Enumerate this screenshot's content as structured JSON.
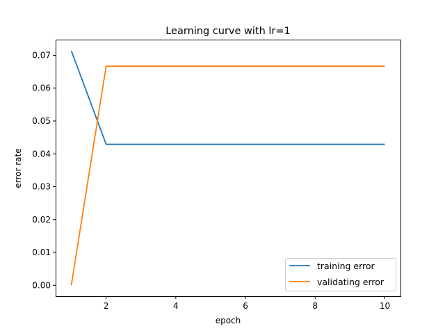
{
  "chart_data": {
    "type": "line",
    "title": "Learning curve with lr=1",
    "xlabel": "epoch",
    "ylabel": "error rate",
    "x": [
      1,
      2,
      3,
      4,
      5,
      6,
      7,
      8,
      9,
      10
    ],
    "series": [
      {
        "name": "training error",
        "color": "#1f77b4",
        "values": [
          0.0714,
          0.0429,
          0.0429,
          0.0429,
          0.0429,
          0.0429,
          0.0429,
          0.0429,
          0.0429,
          0.0429
        ]
      },
      {
        "name": "validating error",
        "color": "#ff7f0e",
        "values": [
          0.0,
          0.0667,
          0.0667,
          0.0667,
          0.0667,
          0.0667,
          0.0667,
          0.0667,
          0.0667,
          0.0667
        ]
      }
    ],
    "xlim": [
      0.55,
      10.45
    ],
    "ylim": [
      -0.00333,
      0.07476
    ],
    "xticks": [
      2,
      4,
      6,
      8,
      10
    ],
    "xtick_labels": [
      "2",
      "4",
      "6",
      "8",
      "10"
    ],
    "yticks": [
      0.0,
      0.01,
      0.02,
      0.03,
      0.04,
      0.05,
      0.06,
      0.07
    ],
    "ytick_labels": [
      "0.00",
      "0.01",
      "0.02",
      "0.03",
      "0.04",
      "0.05",
      "0.06",
      "0.07"
    ],
    "grid": false,
    "legend_position": "lower-right"
  }
}
